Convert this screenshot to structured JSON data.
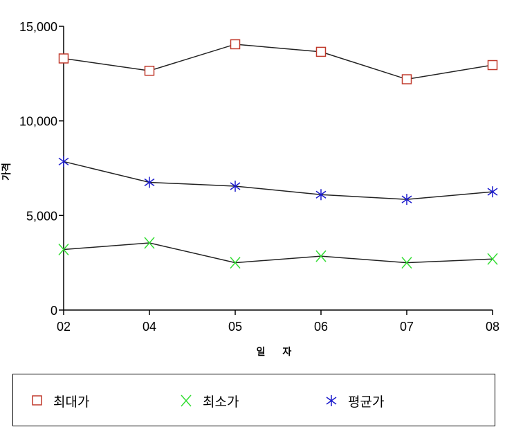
{
  "chart_data": {
    "type": "line",
    "categories": [
      "02",
      "04",
      "05",
      "06",
      "07",
      "08"
    ],
    "series": [
      {
        "name": "최대가",
        "values": [
          13300,
          12650,
          14050,
          13650,
          12200,
          12950
        ],
        "color": "#c0392b",
        "marker": "square"
      },
      {
        "name": "최소가",
        "values": [
          3200,
          3550,
          2500,
          2850,
          2500,
          2700
        ],
        "color": "#33dd33",
        "marker": "x"
      },
      {
        "name": "평균가",
        "values": [
          7850,
          6750,
          6550,
          6100,
          5850,
          6250
        ],
        "color": "#1a1acc",
        "marker": "asterisk"
      }
    ],
    "y_ticks": [
      "15,000",
      "10,000",
      "5,000",
      "0"
    ],
    "ylim": [
      0,
      15000
    ],
    "xlabel": "일 자",
    "ylabel": "가격",
    "line_color": "#222222",
    "grid": false,
    "legend_position": "bottom"
  }
}
